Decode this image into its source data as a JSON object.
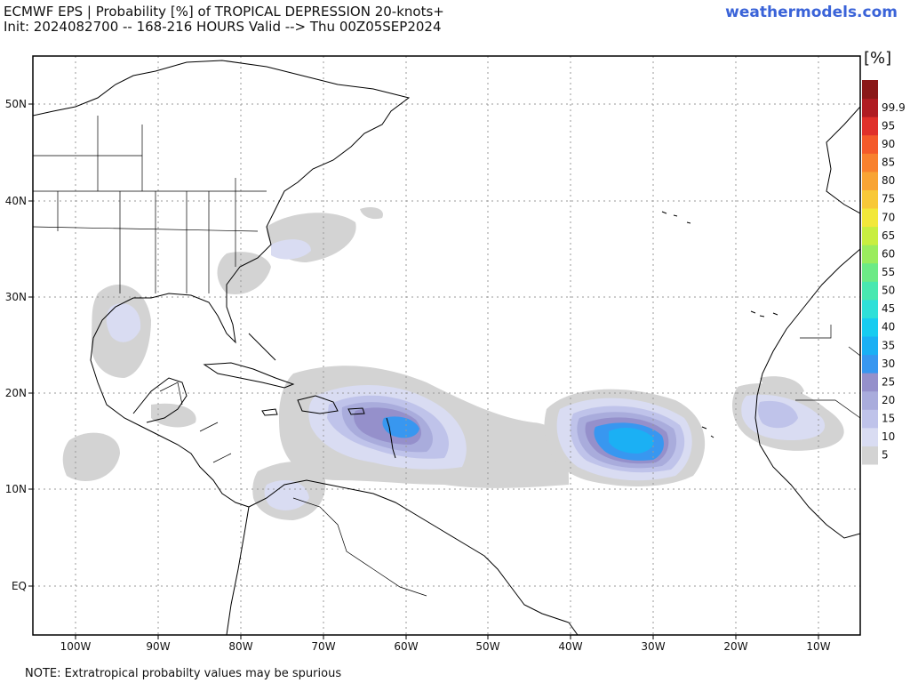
{
  "header": {
    "title_line1": "ECMWF EPS | Probability [%] of TROPICAL DEPRESSION 20-knots+",
    "title_line2": "Init: 2024082700 -- 168-216 HOURS Valid --> Thu 00Z05SEP2024",
    "brand": "weathermodels.com"
  },
  "footer": {
    "note": "NOTE: Extratropical probabilty values may be spurious"
  },
  "axes": {
    "x_labels": [
      "100W",
      "90W",
      "80W",
      "70W",
      "60W",
      "50W",
      "40W",
      "30W",
      "20W",
      "10W"
    ],
    "y_labels": [
      "50N",
      "40N",
      "30N",
      "20N",
      "10N",
      "EQ"
    ]
  },
  "colorbar": {
    "unit": "[%]",
    "labels": [
      "5",
      "10",
      "15",
      "20",
      "25",
      "30",
      "35",
      "40",
      "45",
      "50",
      "55",
      "60",
      "65",
      "70",
      "75",
      "80",
      "85",
      "90",
      "95",
      "99.9"
    ],
    "colors": [
      "#d3d3d3",
      "#d9dcf2",
      "#bfc3ea",
      "#a9acdc",
      "#9590cb",
      "#3897f0",
      "#1bb0f4",
      "#17ccf0",
      "#2fe0d8",
      "#48e8b0",
      "#6cea86",
      "#9aec5e",
      "#c8ee40",
      "#f2e83a",
      "#f8c838",
      "#f8a434",
      "#f8812e",
      "#f45a2a",
      "#e0302a",
      "#b01c22",
      "#8a1818"
    ],
    "top_color": "#8a1818"
  },
  "legend_colors": {
    "land_outline": "#000000",
    "border": "#000000",
    "grid": "#999999",
    "p5": "#d3d3d3",
    "p10": "#d9dcf2",
    "p15": "#bfc3ea",
    "p20": "#a9acdc",
    "p25": "#9590cb",
    "p30": "#3897f0"
  }
}
